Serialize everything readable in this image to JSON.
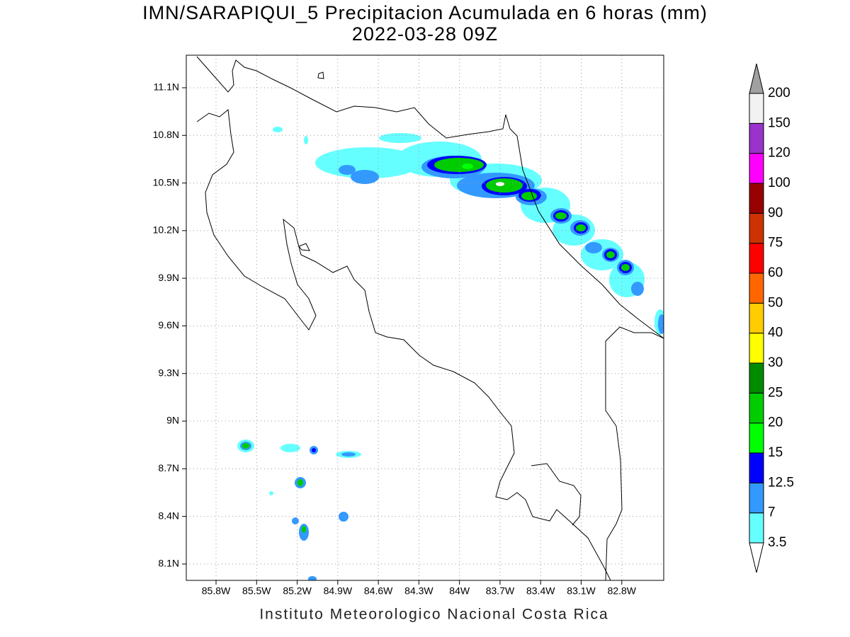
{
  "title": "IMN/SARAPIQUI_5 Precipitacion Acumulada en 6 horas (mm)",
  "subtitle": "2022-03-28 09Z",
  "footer": "Instituto Meteorologico Nacional Costa Rica",
  "map": {
    "lonlim": [
      -86.02,
      -82.49
    ],
    "latlim": [
      7.997,
      11.305
    ],
    "lon_ticks": [
      {
        "value": -85.8,
        "label": "85.8W"
      },
      {
        "value": -85.5,
        "label": "85.5W"
      },
      {
        "value": -85.2,
        "label": "85.2W"
      },
      {
        "value": -84.9,
        "label": "84.9W"
      },
      {
        "value": -84.6,
        "label": "84.6W"
      },
      {
        "value": -84.3,
        "label": "84.3W"
      },
      {
        "value": -84,
        "label": "84W"
      },
      {
        "value": -83.7,
        "label": "83.7W"
      },
      {
        "value": -83.4,
        "label": "83.4W"
      },
      {
        "value": -83.1,
        "label": "83.1W"
      },
      {
        "value": -82.8,
        "label": "82.8W"
      }
    ],
    "lat_ticks": [
      {
        "value": 8.1,
        "label": "8.1N"
      },
      {
        "value": 8.4,
        "label": "8.4N"
      },
      {
        "value": 8.7,
        "label": "8.7N"
      },
      {
        "value": 9,
        "label": "9N"
      },
      {
        "value": 9.3,
        "label": "9.3N"
      },
      {
        "value": 9.6,
        "label": "9.6N"
      },
      {
        "value": 9.9,
        "label": "9.9N"
      },
      {
        "value": 10.2,
        "label": "10.2N"
      },
      {
        "value": 10.5,
        "label": "10.5N"
      },
      {
        "value": 10.8,
        "label": "10.8N"
      },
      {
        "value": 11.1,
        "label": "11.1N"
      }
    ],
    "grid": true
  },
  "colorbar": {
    "levels": [
      3.5,
      7,
      12.5,
      15,
      20,
      25,
      30,
      40,
      50,
      60,
      75,
      90,
      100,
      120,
      150,
      200
    ],
    "colors": [
      "#66ffff",
      "#3399ff",
      "#0000ff",
      "#00ff00",
      "#00cc00",
      "#008c00",
      "#ffff00",
      "#ffcc00",
      "#ff6600",
      "#ff0000",
      "#cc3300",
      "#990000",
      "#ff00ff",
      "#9933cc",
      "#f2f2f2"
    ],
    "over_color": "#a0a0a0",
    "under_color": "#ffffff"
  }
}
